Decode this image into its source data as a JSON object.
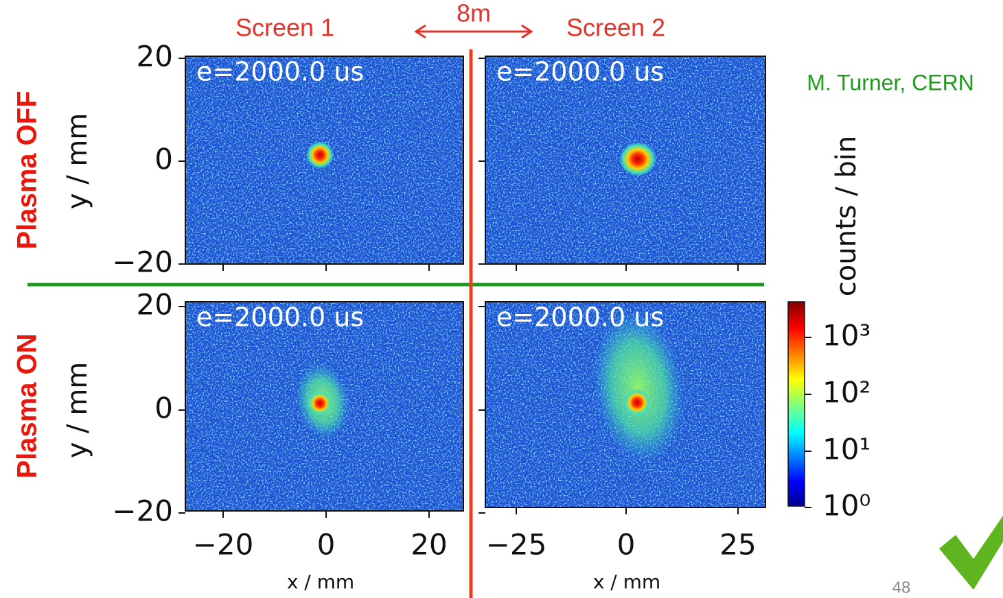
{
  "header": {
    "screen_1": "Screen 1",
    "distance": "8m",
    "screen_2": "Screen 2",
    "credit": "M. Turner, CERN"
  },
  "rows": [
    {
      "label": "Plasma OFF"
    },
    {
      "label": "Plasma ON"
    }
  ],
  "panels": [
    {
      "annotation": "e=2000.0 us"
    },
    {
      "annotation": "e=2000.0 us"
    },
    {
      "annotation": "e=2000.0 us"
    },
    {
      "annotation": "e=2000.0 us"
    }
  ],
  "y_axis": {
    "label": "y / mm",
    "ticks": [
      "20",
      "0",
      "−20"
    ]
  },
  "x_axes": [
    {
      "label": "x / mm",
      "ticks": [
        "−20",
        "0",
        "20"
      ]
    },
    {
      "label": "x / mm",
      "ticks": [
        "−25",
        "0",
        "25"
      ]
    }
  ],
  "colorbar": {
    "label": "counts / bin",
    "ticks": [
      "10⁰",
      "10¹",
      "10²",
      "10³"
    ]
  },
  "page_number": "48"
}
